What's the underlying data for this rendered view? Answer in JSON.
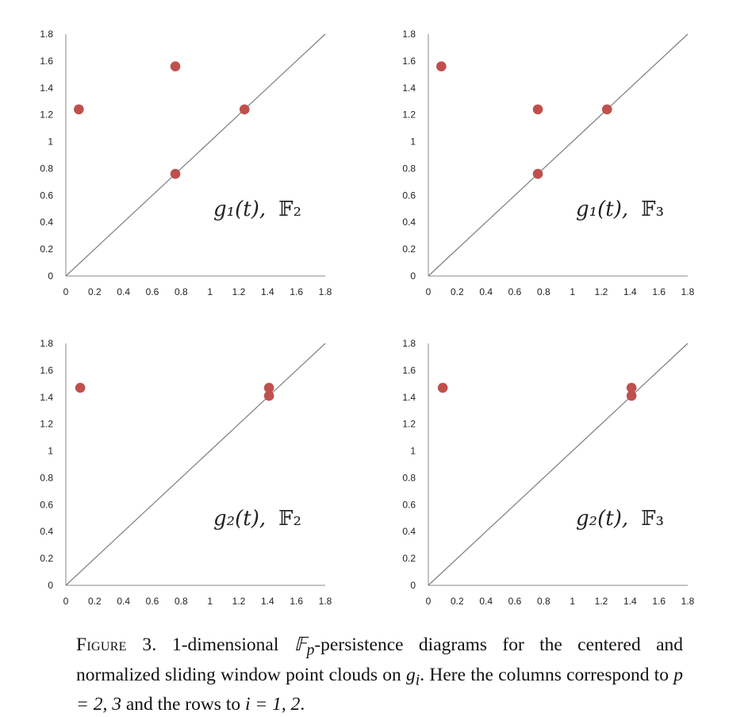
{
  "chart_data": [
    {
      "type": "scatter",
      "label_func": "g₁(t),",
      "label_field": "𝔽₂",
      "xlim": [
        0,
        1.8
      ],
      "ylim": [
        0,
        1.8
      ],
      "x_ticks": [
        "0",
        "0.2",
        "0.4",
        "0.6",
        "0.8",
        "1",
        "1.2",
        "1.4",
        "1.6",
        "1.8"
      ],
      "y_ticks": [
        "0",
        "0.2",
        "0.4",
        "0.6",
        "0.8",
        "1",
        "1.2",
        "1.4",
        "1.6",
        "1.8"
      ],
      "diagonal": true,
      "points": [
        [
          0.09,
          1.24
        ],
        [
          0.76,
          1.56
        ],
        [
          1.24,
          1.24
        ],
        [
          0.76,
          0.76
        ]
      ]
    },
    {
      "type": "scatter",
      "label_func": "g₁(t),",
      "label_field": "𝔽₃",
      "xlim": [
        0,
        1.8
      ],
      "ylim": [
        0,
        1.8
      ],
      "x_ticks": [
        "0",
        "0.2",
        "0.4",
        "0.6",
        "0.8",
        "1",
        "1.2",
        "1.4",
        "1.6",
        "1.8"
      ],
      "y_ticks": [
        "0",
        "0.2",
        "0.4",
        "0.6",
        "0.8",
        "1",
        "1.2",
        "1.4",
        "1.6",
        "1.8"
      ],
      "diagonal": true,
      "points": [
        [
          0.09,
          1.56
        ],
        [
          0.76,
          1.24
        ],
        [
          1.24,
          1.24
        ],
        [
          0.76,
          0.76
        ]
      ]
    },
    {
      "type": "scatter",
      "label_func": "g₂(t),",
      "label_field": "𝔽₂",
      "xlim": [
        0,
        1.8
      ],
      "ylim": [
        0,
        1.8
      ],
      "x_ticks": [
        "0",
        "0.2",
        "0.4",
        "0.6",
        "0.8",
        "1",
        "1.2",
        "1.4",
        "1.6",
        "1.8"
      ],
      "y_ticks": [
        "0",
        "0.2",
        "0.4",
        "0.6",
        "0.8",
        "1",
        "1.2",
        "1.4",
        "1.6",
        "1.8"
      ],
      "diagonal": true,
      "points": [
        [
          0.1,
          1.47
        ],
        [
          1.41,
          1.47
        ],
        [
          1.41,
          1.41
        ]
      ]
    },
    {
      "type": "scatter",
      "label_func": "g₂(t),",
      "label_field": "𝔽₃",
      "xlim": [
        0,
        1.8
      ],
      "ylim": [
        0,
        1.8
      ],
      "x_ticks": [
        "0",
        "0.2",
        "0.4",
        "0.6",
        "0.8",
        "1",
        "1.2",
        "1.4",
        "1.6",
        "1.8"
      ],
      "y_ticks": [
        "0",
        "0.2",
        "0.4",
        "0.6",
        "0.8",
        "1",
        "1.2",
        "1.4",
        "1.6",
        "1.8"
      ],
      "diagonal": true,
      "points": [
        [
          0.1,
          1.47
        ],
        [
          1.41,
          1.47
        ],
        [
          1.41,
          1.41
        ]
      ]
    }
  ],
  "colors": {
    "point": "#c0504d",
    "diagonal": "#7f7f7f",
    "axis": "#888888"
  },
  "caption": {
    "label": "Figure 3.",
    "part1": " 1-dimensional ",
    "math_field": "𝔽",
    "math_sub": "p",
    "part2": "-persistence diagrams for the centered and normalized sliding window point clouds on ",
    "math_g": "g",
    "math_g_sub": "i",
    "part3": ".  Here the columns correspond to ",
    "math_p": "p = 2, 3",
    "part4": " and the rows to ",
    "math_i": "i = 1, 2",
    "part5": "."
  }
}
